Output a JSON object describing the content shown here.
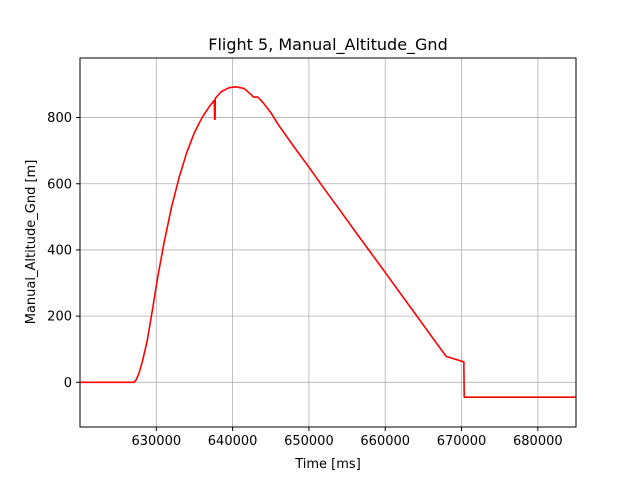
{
  "chart_data": {
    "type": "line",
    "title": "Flight 5, Manual_Altitude_Gnd",
    "xlabel": "Time [ms]",
    "ylabel": "Manual_Altitude_Gnd [m]",
    "xlim": [
      620000,
      685000
    ],
    "ylim": [
      -135,
      980
    ],
    "x_ticks": [
      630000,
      640000,
      650000,
      660000,
      670000,
      680000
    ],
    "y_ticks": [
      0,
      200,
      400,
      600,
      800
    ],
    "grid": true,
    "legend": "none",
    "colors": {
      "line": "#ff0000",
      "grid": "#b0b0b0",
      "axes": "#000000",
      "background": "#ffffff"
    },
    "series": [
      {
        "values": [
          [
            620000,
            0
          ],
          [
            627000,
            0
          ],
          [
            627300,
            5
          ],
          [
            627700,
            25
          ],
          [
            628200,
            65
          ],
          [
            628800,
            125
          ],
          [
            629500,
            220
          ],
          [
            630200,
            320
          ],
          [
            631000,
            420
          ],
          [
            632000,
            530
          ],
          [
            633000,
            620
          ],
          [
            634000,
            695
          ],
          [
            635000,
            755
          ],
          [
            636000,
            800
          ],
          [
            637000,
            835
          ],
          [
            637600,
            852
          ],
          [
            637640,
            795
          ],
          [
            637700,
            795
          ],
          [
            637730,
            858
          ],
          [
            638500,
            878
          ],
          [
            639500,
            890
          ],
          [
            640400,
            893
          ],
          [
            641500,
            888
          ],
          [
            642500,
            868
          ],
          [
            642700,
            862
          ],
          [
            643300,
            862
          ],
          [
            644000,
            845
          ],
          [
            645000,
            815
          ],
          [
            646000,
            778
          ],
          [
            648000,
            713
          ],
          [
            650000,
            650
          ],
          [
            652000,
            585
          ],
          [
            654000,
            522
          ],
          [
            656000,
            458
          ],
          [
            658000,
            395
          ],
          [
            660000,
            332
          ],
          [
            662000,
            268
          ],
          [
            664000,
            205
          ],
          [
            666000,
            141
          ],
          [
            668000,
            78
          ],
          [
            670300,
            62
          ],
          [
            670350,
            -45
          ],
          [
            685000,
            -45
          ]
        ]
      }
    ]
  }
}
